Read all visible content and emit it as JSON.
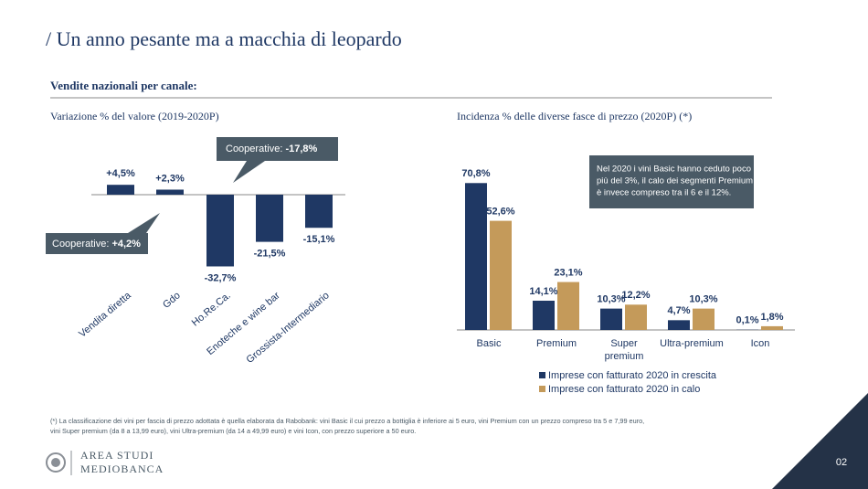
{
  "header": {
    "title": "/ Un anno pesante ma a macchia di leopardo",
    "subtitle": "Vendite nazionali per canale:"
  },
  "chart_data": [
    {
      "type": "bar",
      "title": "Variazione % del valore (2019-2020P)",
      "categories": [
        "Vendita diretta",
        "Gdo",
        "Ho.Re.Ca.",
        "Enoteche e wine bar",
        "Grossista-Intermediario"
      ],
      "values": [
        4.5,
        2.3,
        -32.7,
        -21.5,
        -15.1
      ],
      "value_labels": [
        "+4,5%",
        "+2,3%",
        "-32,7%",
        "-21,5%",
        "-15,1%"
      ],
      "color": "#1f3864",
      "annotations": [
        {
          "label": "Cooperative:",
          "value": "-17,8%"
        },
        {
          "label": "Cooperative:",
          "value": "+4,2%"
        }
      ]
    },
    {
      "type": "bar",
      "title": "Incidenza % delle diverse fasce di prezzo (2020P) (*)",
      "categories": [
        "Basic",
        "Premium",
        "Super premium",
        "Ultra-premium",
        "Icon"
      ],
      "series": [
        {
          "name": "Imprese con fatturato 2020 in crescita",
          "color": "#1f3864",
          "values": [
            70.8,
            14.1,
            10.3,
            4.7,
            0.1
          ],
          "value_labels": [
            "70,8%",
            "14,1%",
            "10,3%",
            "4,7%",
            "0,1%"
          ]
        },
        {
          "name": "Imprese con fatturato 2020 in calo",
          "color": "#c49a5a",
          "values": [
            52.6,
            23.1,
            12.2,
            10.3,
            1.8
          ],
          "value_labels": [
            "52,6%",
            "23,1%",
            "12,2%",
            "10,3%",
            "1,8%"
          ]
        }
      ],
      "note": [
        "Nel 2020 i vini Basic hanno ceduto poco",
        "più del 3%, il calo dei segmenti Premium",
        "è invece compreso tra il 6 e il 12%."
      ]
    }
  ],
  "footnote": [
    "(*) La classificazione dei vini per fascia di prezzo adottata è quella elaborata da Rabobank: vini Basic il cui prezzo a bottiglia è inferiore ai 5 euro, vini Premium con un prezzo compreso tra 5 e 7,99 euro,",
    "vini Super premium (da 8 a 13,99 euro), vini Ultra-premium (da 14 a 49,99 euro) e vini Icon, con prezzo superiore a 50 euro."
  ],
  "logo": {
    "line1": "AREA STUDI",
    "line2": "MEDIOBANCA"
  },
  "page_number": "02"
}
